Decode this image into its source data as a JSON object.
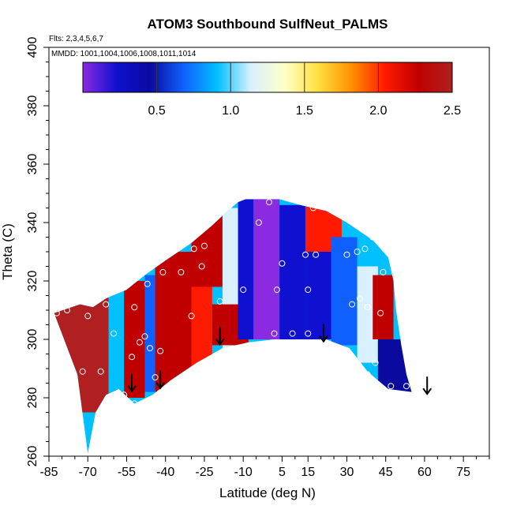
{
  "chart_data": {
    "type": "heatmap",
    "title": "ATOM3 Southbound SulfNeut_PALMS",
    "annotations": [
      "Flts: 2,3,4,5,6,7",
      "MMDD: 1001,1004,1006,1008,1011,1014"
    ],
    "xlabel": "Latitude (deg N)",
    "ylabel": "Theta (C)",
    "xlim": [
      -85,
      85
    ],
    "ylim": [
      260,
      400
    ],
    "x_ticks": [
      -85,
      -70,
      -55,
      -40,
      -25,
      -10,
      5,
      15,
      30,
      45,
      60,
      75
    ],
    "x_tick_labels": [
      "-85",
      "-70",
      "-55",
      "-40",
      "-25",
      "-10",
      "5",
      "15",
      "30",
      "45",
      "60",
      "75"
    ],
    "y_ticks": [
      260,
      280,
      300,
      320,
      340,
      360,
      380,
      400
    ],
    "y_tick_labels": [
      "260",
      "280",
      "300",
      "320",
      "340",
      "360",
      "380",
      "400"
    ],
    "grid": false,
    "colorbar": {
      "range": [
        0,
        2.5
      ],
      "ticks": [
        0.5,
        1.0,
        1.5,
        2.0,
        2.5
      ],
      "tick_labels": [
        "0.5",
        "1.0",
        "1.5",
        "2.0",
        "2.5"
      ],
      "colors": [
        "#8a2be2",
        "#1010d0",
        "#0a0aa0",
        "#1060ff",
        "#00c0ff",
        "#d8f0ff",
        "#ffffc8",
        "#ffe040",
        "#ff9000",
        "#ff1a00",
        "#c00000",
        "#b02020"
      ]
    },
    "field_outline": [
      [
        -70,
        261
      ],
      [
        -74,
        288
      ],
      [
        -83,
        309
      ],
      [
        -73,
        312
      ],
      [
        -68,
        311
      ],
      [
        -63,
        314
      ],
      [
        -55,
        317
      ],
      [
        -48,
        322
      ],
      [
        -40,
        327
      ],
      [
        -30,
        333
      ],
      [
        -22,
        339
      ],
      [
        -16,
        344
      ],
      [
        -12,
        347
      ],
      [
        -9,
        348
      ],
      [
        4,
        348
      ],
      [
        12,
        346
      ],
      [
        22,
        344
      ],
      [
        30,
        340
      ],
      [
        40,
        334
      ],
      [
        46,
        328
      ],
      [
        48,
        320
      ],
      [
        49,
        310
      ],
      [
        51,
        298
      ],
      [
        53,
        288
      ],
      [
        55,
        282
      ],
      [
        46,
        283
      ],
      [
        38,
        289
      ],
      [
        31,
        297
      ],
      [
        22,
        300
      ],
      [
        12,
        300
      ],
      [
        2,
        300
      ],
      [
        -8,
        299
      ],
      [
        -18,
        297
      ],
      [
        -28,
        292
      ],
      [
        -38,
        286
      ],
      [
        -45,
        281
      ],
      [
        -52,
        278
      ],
      [
        -58,
        283
      ],
      [
        -63,
        281
      ],
      [
        -67,
        275
      ]
    ],
    "cells": [
      {
        "xr": [
          -85,
          -60
        ],
        "yr": [
          275,
          320
        ],
        "v": 2.5
      },
      {
        "xr": [
          -62,
          -56
        ],
        "yr": [
          278,
          316
        ],
        "v": 1.0
      },
      {
        "xr": [
          -56,
          -48
        ],
        "yr": [
          280,
          320
        ],
        "v": 2.3
      },
      {
        "xr": [
          -48,
          -44
        ],
        "yr": [
          282,
          322
        ],
        "v": 0.6
      },
      {
        "xr": [
          -44,
          -30
        ],
        "yr": [
          282,
          330
        ],
        "v": 2.3
      },
      {
        "xr": [
          -30,
          -22
        ],
        "yr": [
          290,
          320
        ],
        "v": 2.1
      },
      {
        "xr": [
          -30,
          -18
        ],
        "yr": [
          318,
          345
        ],
        "v": 2.2
      },
      {
        "xr": [
          -18,
          -12
        ],
        "yr": [
          295,
          345
        ],
        "v": 1.1
      },
      {
        "xr": [
          -22,
          -8
        ],
        "yr": [
          298,
          312
        ],
        "v": 2.3
      },
      {
        "xr": [
          -12,
          -6
        ],
        "yr": [
          300,
          348
        ],
        "v": 0.2
      },
      {
        "xr": [
          -6,
          4
        ],
        "yr": [
          300,
          348
        ],
        "v": 0.1
      },
      {
        "xr": [
          4,
          14
        ],
        "yr": [
          300,
          346
        ],
        "v": 0.3
      },
      {
        "xr": [
          14,
          24
        ],
        "yr": [
          300,
          330
        ],
        "v": 0.2
      },
      {
        "xr": [
          14,
          28
        ],
        "yr": [
          330,
          346
        ],
        "v": 2.0
      },
      {
        "xr": [
          24,
          34
        ],
        "yr": [
          298,
          335
        ],
        "v": 0.6
      },
      {
        "xr": [
          34,
          42
        ],
        "yr": [
          292,
          325
        ],
        "v": 1.2
      },
      {
        "xr": [
          40,
          48
        ],
        "yr": [
          300,
          322
        ],
        "v": 2.2
      },
      {
        "xr": [
          42,
          55
        ],
        "yr": [
          282,
          300
        ],
        "v": 0.5
      }
    ],
    "points": [
      [
        -72,
        289
      ],
      [
        -65,
        289
      ],
      [
        -70,
        308
      ],
      [
        -66,
        315
      ],
      [
        -63,
        312
      ],
      [
        -78,
        310
      ],
      [
        -82,
        309
      ],
      [
        -60,
        302
      ],
      [
        -56,
        281
      ],
      [
        -52,
        278
      ],
      [
        -53,
        294
      ],
      [
        -50,
        299
      ],
      [
        -48,
        301
      ],
      [
        -46,
        297
      ],
      [
        -42,
        296
      ],
      [
        -44,
        287
      ],
      [
        -52,
        311
      ],
      [
        -47,
        319
      ],
      [
        -41,
        323
      ],
      [
        -34,
        323
      ],
      [
        -26,
        325
      ],
      [
        -29,
        331
      ],
      [
        -25,
        332
      ],
      [
        -30,
        308
      ],
      [
        -19,
        313
      ],
      [
        -10,
        317
      ],
      [
        -4,
        340
      ],
      [
        0,
        347
      ],
      [
        5,
        326
      ],
      [
        3,
        317
      ],
      [
        2,
        302
      ],
      [
        9,
        302
      ],
      [
        15,
        302
      ],
      [
        15,
        317
      ],
      [
        18,
        329
      ],
      [
        14,
        329
      ],
      [
        17,
        345
      ],
      [
        30,
        329
      ],
      [
        34,
        330
      ],
      [
        37,
        331
      ],
      [
        32,
        312
      ],
      [
        35,
        314
      ],
      [
        38,
        311
      ],
      [
        40,
        335
      ],
      [
        44,
        323
      ],
      [
        43,
        309
      ],
      [
        41,
        292
      ],
      [
        38,
        288
      ],
      [
        47,
        284
      ],
      [
        53,
        284
      ]
    ],
    "flight_arrows": [
      [
        -53,
        285
      ],
      [
        -42,
        286
      ],
      [
        -19,
        301
      ],
      [
        21,
        302
      ],
      [
        61,
        284
      ]
    ]
  }
}
